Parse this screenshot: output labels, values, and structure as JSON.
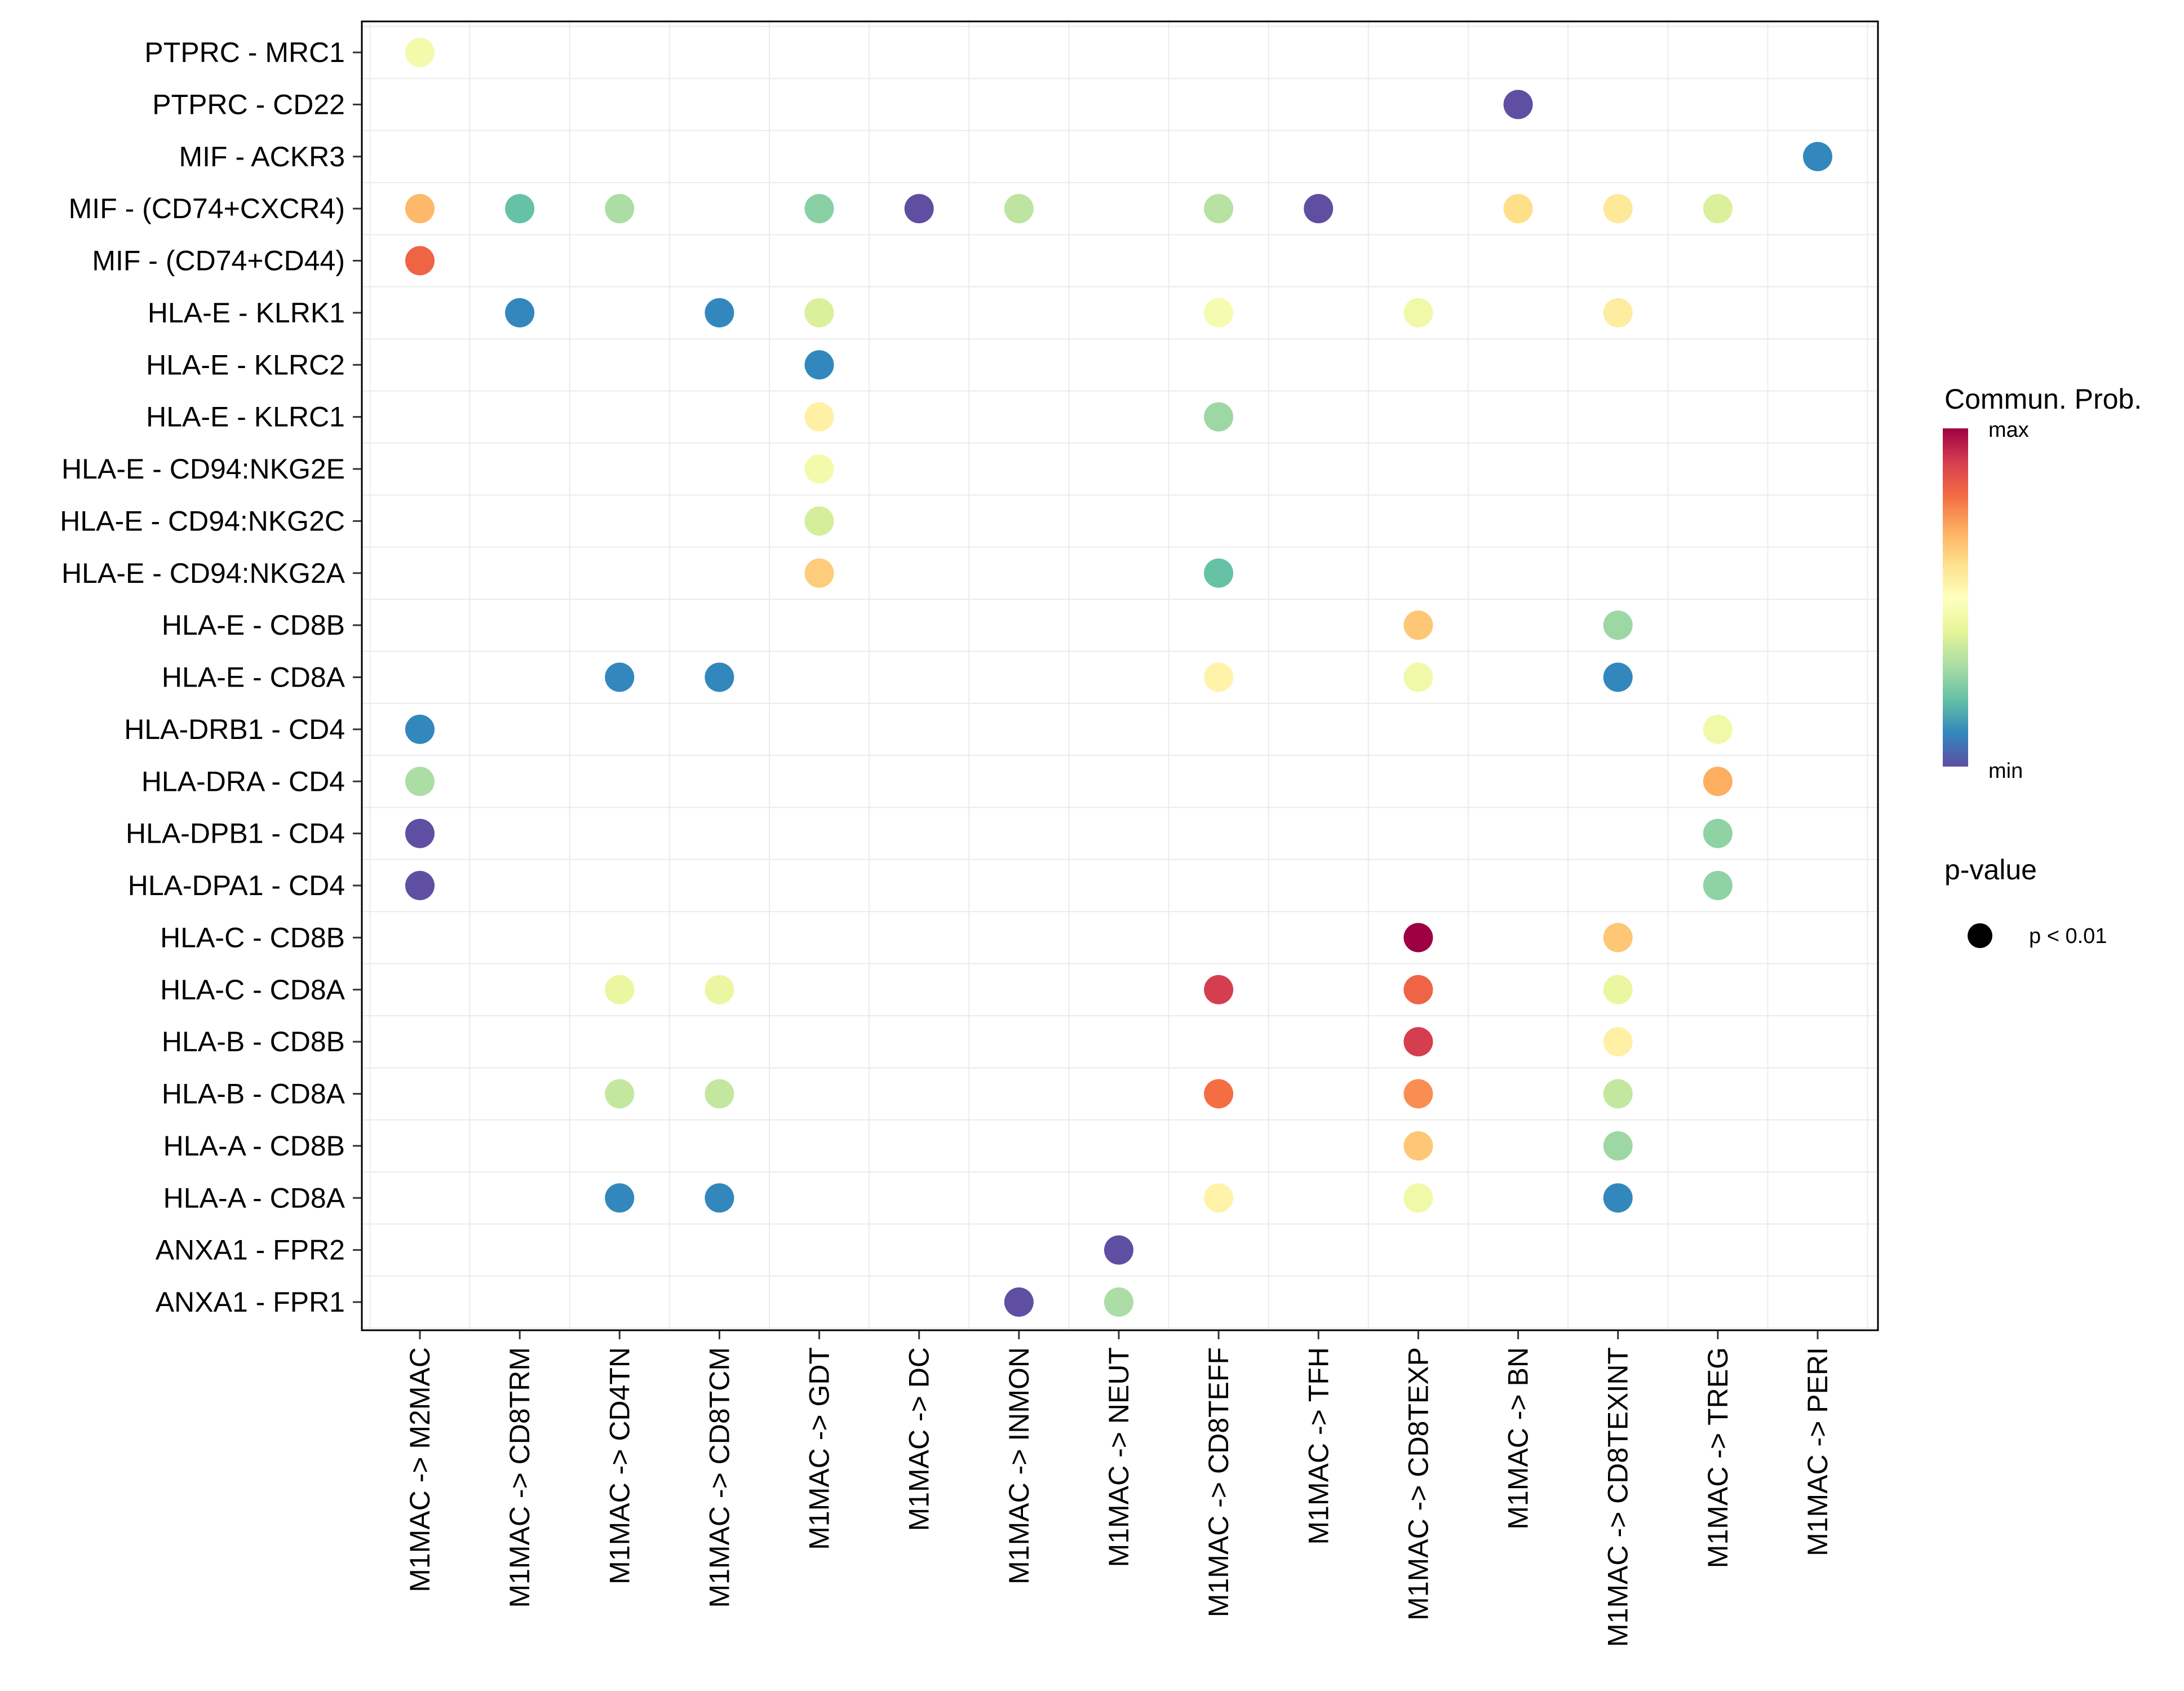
{
  "chart_data": {
    "type": "scatter",
    "subtype": "dot-plot",
    "title": "",
    "xlabel": "",
    "ylabel": "",
    "grid": true,
    "x_categories": [
      "M1MAC -> M2MAC",
      "M1MAC -> CD8TRM",
      "M1MAC -> CD4TN",
      "M1MAC -> CD8TCM",
      "M1MAC -> GDT",
      "M1MAC -> DC",
      "M1MAC -> INMON",
      "M1MAC -> NEUT",
      "M1MAC -> CD8TEFF",
      "M1MAC -> TFH",
      "M1MAC -> CD8TEXP",
      "M1MAC -> BN",
      "M1MAC -> CD8TEXINT",
      "M1MAC -> TREG",
      "M1MAC -> PERI"
    ],
    "y_categories": [
      "PTPRC - MRC1",
      "PTPRC - CD22",
      "MIF - ACKR3",
      "MIF - (CD74+CXCR4)",
      "MIF - (CD74+CD44)",
      "HLA-E - KLRK1",
      "HLA-E - KLRC2",
      "HLA-E - KLRC1",
      "HLA-E - CD94:NKG2E",
      "HLA-E - CD94:NKG2C",
      "HLA-E - CD94:NKG2A",
      "HLA-E - CD8B",
      "HLA-E - CD8A",
      "HLA-DRB1 - CD4",
      "HLA-DRA - CD4",
      "HLA-DPB1 - CD4",
      "HLA-DPA1 - CD4",
      "HLA-C - CD8B",
      "HLA-C - CD8A",
      "HLA-B - CD8B",
      "HLA-B - CD8A",
      "HLA-A - CD8B",
      "HLA-A - CD8A",
      "ANXA1 - FPR2",
      "ANXA1 - FPR1"
    ],
    "value_note": "prob is normalized communication probability (0 = min, 1 = max) estimated from color",
    "points": [
      {
        "y": "PTPRC - MRC1",
        "x": "M1MAC -> M2MAC",
        "prob": 0.45
      },
      {
        "y": "PTPRC - CD22",
        "x": "M1MAC -> BN",
        "prob": 0.0
      },
      {
        "y": "MIF - ACKR3",
        "x": "M1MAC -> PERI",
        "prob": 0.1
      },
      {
        "y": "MIF - (CD74+CXCR4)",
        "x": "M1MAC -> M2MAC",
        "prob": 0.68
      },
      {
        "y": "MIF - (CD74+CXCR4)",
        "x": "M1MAC -> CD8TRM",
        "prob": 0.2
      },
      {
        "y": "MIF - (CD74+CXCR4)",
        "x": "M1MAC -> CD4TN",
        "prob": 0.3
      },
      {
        "y": "MIF - (CD74+CXCR4)",
        "x": "M1MAC -> GDT",
        "prob": 0.25
      },
      {
        "y": "MIF - (CD74+CXCR4)",
        "x": "M1MAC -> DC",
        "prob": 0.0
      },
      {
        "y": "MIF - (CD74+CXCR4)",
        "x": "M1MAC -> INMON",
        "prob": 0.33
      },
      {
        "y": "MIF - (CD74+CXCR4)",
        "x": "M1MAC -> CD8TEFF",
        "prob": 0.32
      },
      {
        "y": "MIF - (CD74+CXCR4)",
        "x": "M1MAC -> TFH",
        "prob": 0.0
      },
      {
        "y": "MIF - (CD74+CXCR4)",
        "x": "M1MAC -> BN",
        "prob": 0.6
      },
      {
        "y": "MIF - (CD74+CXCR4)",
        "x": "M1MAC -> CD8TEXINT",
        "prob": 0.57
      },
      {
        "y": "MIF - (CD74+CXCR4)",
        "x": "M1MAC -> TREG",
        "prob": 0.38
      },
      {
        "y": "MIF - (CD74+CD44)",
        "x": "M1MAC -> M2MAC",
        "prob": 0.82
      },
      {
        "y": "HLA-E - KLRK1",
        "x": "M1MAC -> CD8TRM",
        "prob": 0.1
      },
      {
        "y": "HLA-E - KLRK1",
        "x": "M1MAC -> CD8TCM",
        "prob": 0.1
      },
      {
        "y": "HLA-E - KLRK1",
        "x": "M1MAC -> GDT",
        "prob": 0.38
      },
      {
        "y": "HLA-E - KLRK1",
        "x": "M1MAC -> CD8TEFF",
        "prob": 0.46
      },
      {
        "y": "HLA-E - KLRK1",
        "x": "M1MAC -> CD8TEXP",
        "prob": 0.44
      },
      {
        "y": "HLA-E - KLRK1",
        "x": "M1MAC -> CD8TEXINT",
        "prob": 0.56
      },
      {
        "y": "HLA-E - KLRC2",
        "x": "M1MAC -> GDT",
        "prob": 0.1
      },
      {
        "y": "HLA-E - KLRC1",
        "x": "M1MAC -> GDT",
        "prob": 0.55
      },
      {
        "y": "HLA-E - KLRC1",
        "x": "M1MAC -> CD8TEFF",
        "prob": 0.28
      },
      {
        "y": "HLA-E - CD94:NKG2E",
        "x": "M1MAC -> GDT",
        "prob": 0.45
      },
      {
        "y": "HLA-E - CD94:NKG2C",
        "x": "M1MAC -> GDT",
        "prob": 0.37
      },
      {
        "y": "HLA-E - CD94:NKG2A",
        "x": "M1MAC -> GDT",
        "prob": 0.64
      },
      {
        "y": "HLA-E - CD94:NKG2A",
        "x": "M1MAC -> CD8TEFF",
        "prob": 0.2
      },
      {
        "y": "HLA-E - CD8B",
        "x": "M1MAC -> CD8TEXP",
        "prob": 0.65
      },
      {
        "y": "HLA-E - CD8B",
        "x": "M1MAC -> CD8TEXINT",
        "prob": 0.28
      },
      {
        "y": "HLA-E - CD8A",
        "x": "M1MAC -> CD4TN",
        "prob": 0.1
      },
      {
        "y": "HLA-E - CD8A",
        "x": "M1MAC -> CD8TCM",
        "prob": 0.1
      },
      {
        "y": "HLA-E - CD8A",
        "x": "M1MAC -> CD8TEFF",
        "prob": 0.54
      },
      {
        "y": "HLA-E - CD8A",
        "x": "M1MAC -> CD8TEXP",
        "prob": 0.44
      },
      {
        "y": "HLA-E - CD8A",
        "x": "M1MAC -> CD8TEXINT",
        "prob": 0.1
      },
      {
        "y": "HLA-DRB1 - CD4",
        "x": "M1MAC -> M2MAC",
        "prob": 0.1
      },
      {
        "y": "HLA-DRB1 - CD4",
        "x": "M1MAC -> TREG",
        "prob": 0.44
      },
      {
        "y": "HLA-DRA - CD4",
        "x": "M1MAC -> M2MAC",
        "prob": 0.3
      },
      {
        "y": "HLA-DRA - CD4",
        "x": "M1MAC -> TREG",
        "prob": 0.7
      },
      {
        "y": "HLA-DPB1 - CD4",
        "x": "M1MAC -> M2MAC",
        "prob": 0.0
      },
      {
        "y": "HLA-DPB1 - CD4",
        "x": "M1MAC -> TREG",
        "prob": 0.26
      },
      {
        "y": "HLA-DPA1 - CD4",
        "x": "M1MAC -> M2MAC",
        "prob": 0.0
      },
      {
        "y": "HLA-DPA1 - CD4",
        "x": "M1MAC -> TREG",
        "prob": 0.26
      },
      {
        "y": "HLA-C - CD8B",
        "x": "M1MAC -> CD8TEXP",
        "prob": 1.0
      },
      {
        "y": "HLA-C - CD8B",
        "x": "M1MAC -> CD8TEXINT",
        "prob": 0.65
      },
      {
        "y": "HLA-C - CD8A",
        "x": "M1MAC -> CD4TN",
        "prob": 0.42
      },
      {
        "y": "HLA-C - CD8A",
        "x": "M1MAC -> CD8TCM",
        "prob": 0.42
      },
      {
        "y": "HLA-C - CD8A",
        "x": "M1MAC -> CD8TEFF",
        "prob": 0.9
      },
      {
        "y": "HLA-C - CD8A",
        "x": "M1MAC -> CD8TEXP",
        "prob": 0.82
      },
      {
        "y": "HLA-C - CD8A",
        "x": "M1MAC -> CD8TEXINT",
        "prob": 0.42
      },
      {
        "y": "HLA-B - CD8B",
        "x": "M1MAC -> CD8TEXP",
        "prob": 0.9
      },
      {
        "y": "HLA-B - CD8B",
        "x": "M1MAC -> CD8TEXINT",
        "prob": 0.55
      },
      {
        "y": "HLA-B - CD8A",
        "x": "M1MAC -> CD4TN",
        "prob": 0.34
      },
      {
        "y": "HLA-B - CD8A",
        "x": "M1MAC -> CD8TCM",
        "prob": 0.34
      },
      {
        "y": "HLA-B - CD8A",
        "x": "M1MAC -> CD8TEFF",
        "prob": 0.8
      },
      {
        "y": "HLA-B - CD8A",
        "x": "M1MAC -> CD8TEXP",
        "prob": 0.75
      },
      {
        "y": "HLA-B - CD8A",
        "x": "M1MAC -> CD8TEXINT",
        "prob": 0.34
      },
      {
        "y": "HLA-A - CD8B",
        "x": "M1MAC -> CD8TEXP",
        "prob": 0.65
      },
      {
        "y": "HLA-A - CD8B",
        "x": "M1MAC -> CD8TEXINT",
        "prob": 0.28
      },
      {
        "y": "HLA-A - CD8A",
        "x": "M1MAC -> CD4TN",
        "prob": 0.1
      },
      {
        "y": "HLA-A - CD8A",
        "x": "M1MAC -> CD8TCM",
        "prob": 0.1
      },
      {
        "y": "HLA-A - CD8A",
        "x": "M1MAC -> CD8TEFF",
        "prob": 0.54
      },
      {
        "y": "HLA-A - CD8A",
        "x": "M1MAC -> CD8TEXP",
        "prob": 0.44
      },
      {
        "y": "HLA-A - CD8A",
        "x": "M1MAC -> CD8TEXINT",
        "prob": 0.1
      },
      {
        "y": "ANXA1 - FPR2",
        "x": "M1MAC -> NEUT",
        "prob": 0.0
      },
      {
        "y": "ANXA1 - FPR1",
        "x": "M1MAC -> INMON",
        "prob": 0.0
      },
      {
        "y": "ANXA1 - FPR1",
        "x": "M1MAC -> NEUT",
        "prob": 0.3
      }
    ],
    "colorscale": {
      "name": "Spectral (reversed)",
      "colors": [
        "#5E4FA2",
        "#3288BD",
        "#66C2A5",
        "#ABDDA4",
        "#E6F598",
        "#FFFFBF",
        "#FEE08B",
        "#FDAE61",
        "#F46D43",
        "#D53E4F",
        "#9E0142"
      ]
    },
    "legend": {
      "position": "right",
      "color_title": "Commun. Prob.",
      "color_max_label": "max",
      "color_min_label": "min",
      "size_title": "p-value",
      "size_entry_label": "p < 0.01"
    }
  }
}
